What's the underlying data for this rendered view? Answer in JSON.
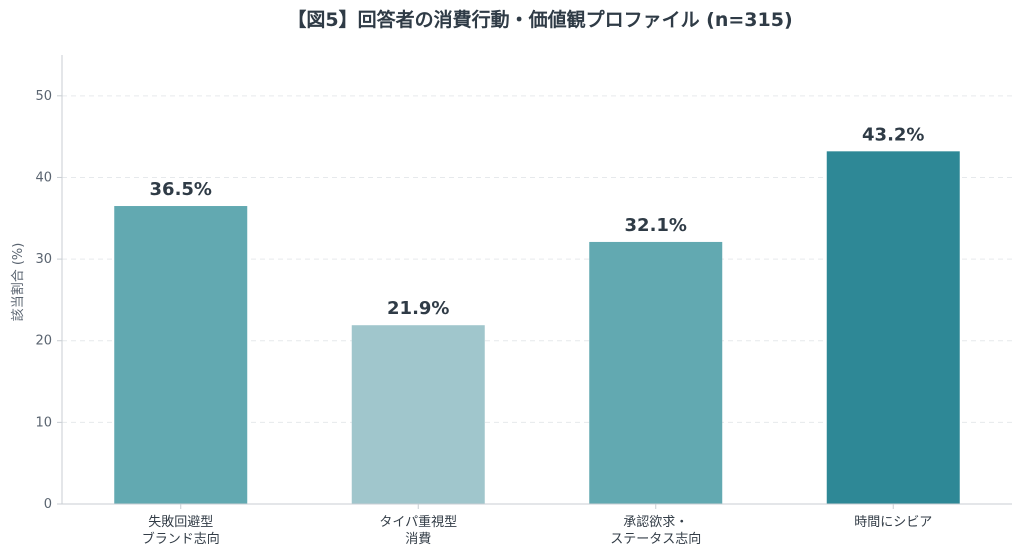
{
  "chart_data": {
    "type": "bar",
    "title": "【図5】回答者の消費行動・価値観プロファイル (n=315)",
    "ylabel": "該当割合 (%)",
    "xlabel": "",
    "ylim": [
      0,
      55
    ],
    "yticks": [
      0,
      10,
      20,
      30,
      40,
      50
    ],
    "grid": true,
    "categories": [
      [
        "失敗回避型",
        "ブランド志向"
      ],
      [
        "タイパ重視型",
        "消費"
      ],
      [
        "承認欲求・",
        "ステータス志向"
      ],
      [
        "時間にシビア"
      ]
    ],
    "values": [
      36.5,
      21.9,
      32.1,
      43.2
    ],
    "data_labels": [
      "36.5%",
      "21.9%",
      "32.1%",
      "43.2%"
    ],
    "colors": [
      "#62a9b1",
      "#a0c6cc",
      "#62a9b1",
      "#2e8896"
    ]
  }
}
